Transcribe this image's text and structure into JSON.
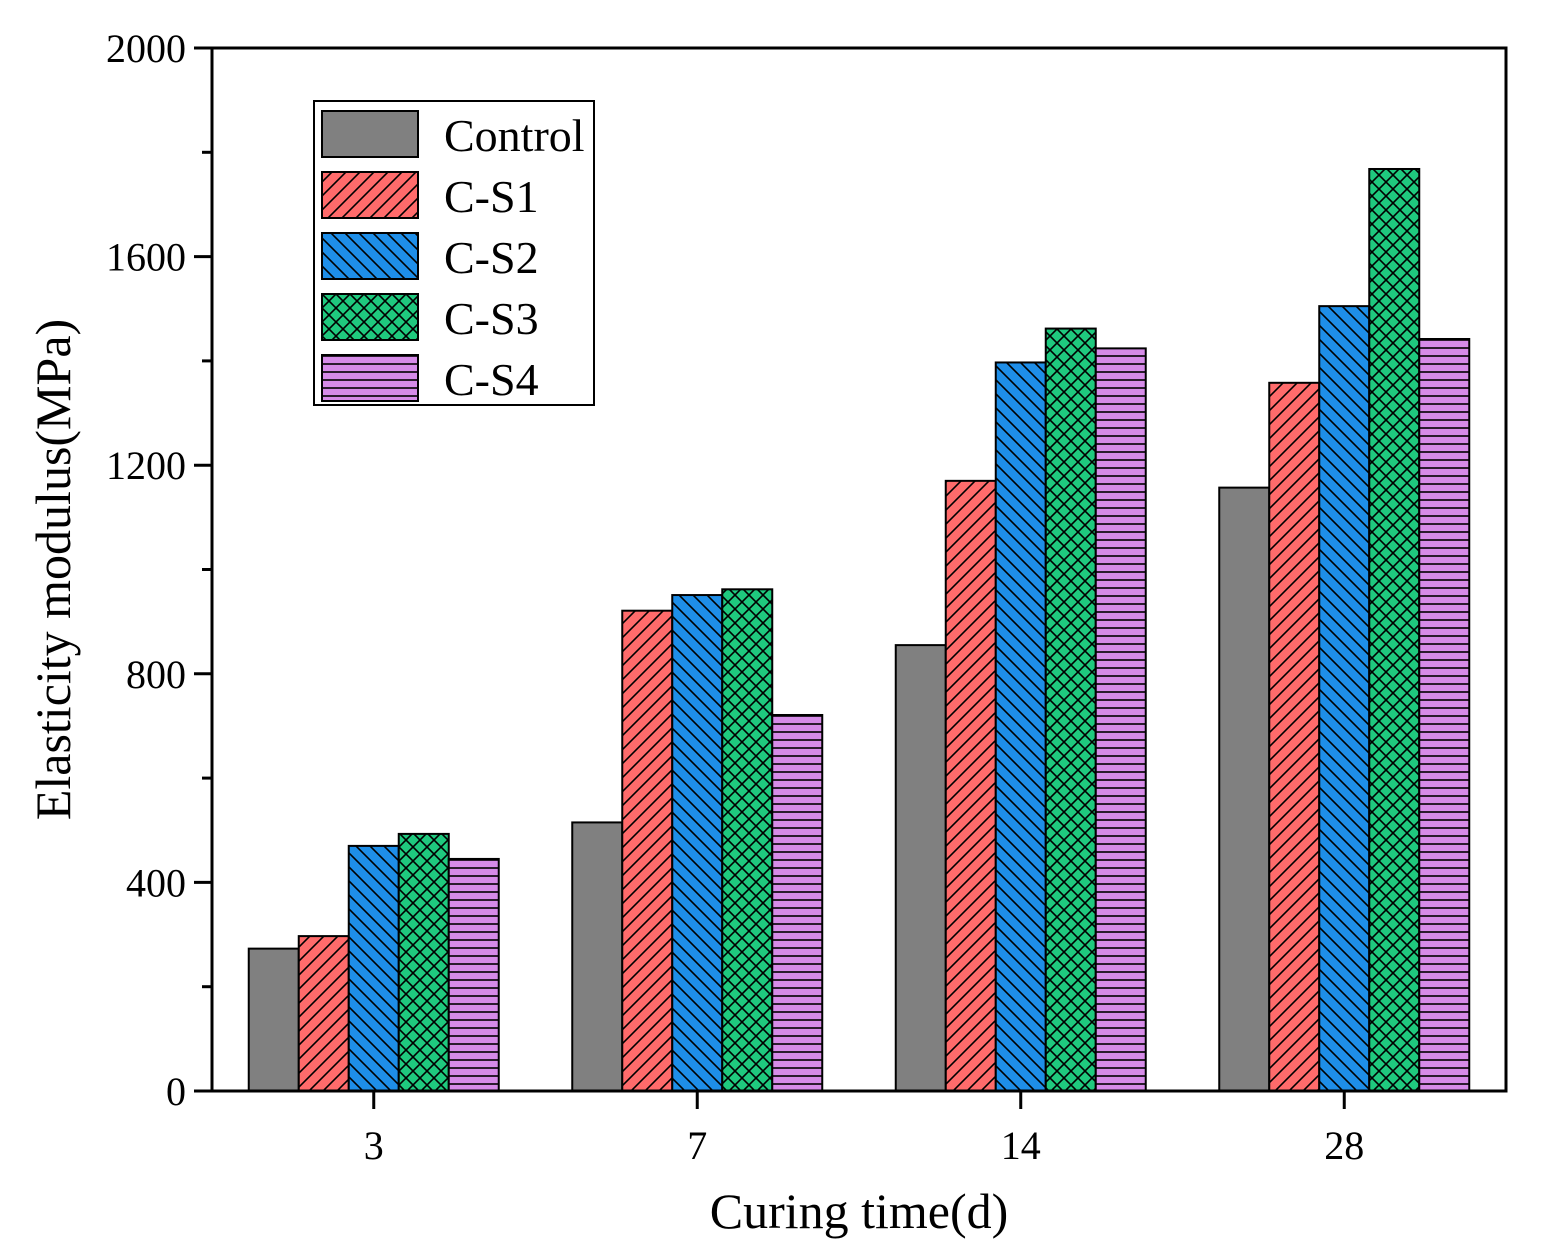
{
  "chart_data": {
    "type": "bar",
    "title": "",
    "xlabel": "Curing time(d)",
    "ylabel": "Elasticity modulus(MPa)",
    "categories": [
      "3",
      "7",
      "14",
      "28"
    ],
    "ylim": [
      0,
      2000
    ],
    "yticks": [
      0,
      400,
      800,
      1200,
      1600,
      2000
    ],
    "yticks_labels": [
      "0",
      "400",
      "800",
      "1200",
      "1600",
      "2000"
    ],
    "legend_position": "top-left",
    "grid": false,
    "series": [
      {
        "name": "Control",
        "color": "#808080",
        "pattern": "solid",
        "values": [
          273,
          515,
          855,
          1157
        ]
      },
      {
        "name": "C-S1",
        "color": "#ff6b6b",
        "pattern": "forward-diagonal",
        "values": [
          297,
          921,
          1170,
          1358
        ]
      },
      {
        "name": "C-S2",
        "color": "#1e8ee8",
        "pattern": "back-diagonal",
        "values": [
          470,
          951,
          1397,
          1505
        ]
      },
      {
        "name": "C-S3",
        "color": "#1fc97e",
        "pattern": "crosshatch",
        "values": [
          493,
          962,
          1462,
          1768
        ]
      },
      {
        "name": "C-S4",
        "color": "#d68be8",
        "pattern": "horizontal",
        "values": [
          445,
          721,
          1424,
          1442
        ]
      }
    ]
  }
}
